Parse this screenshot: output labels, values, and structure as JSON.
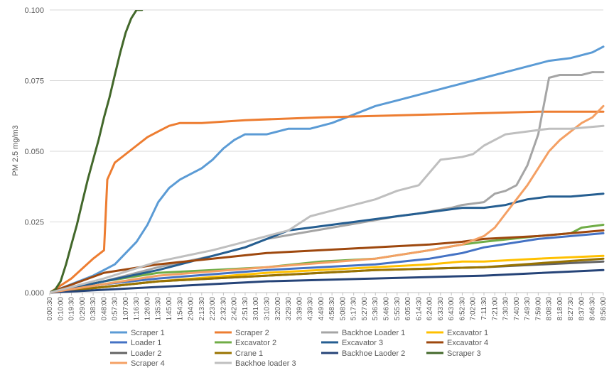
{
  "chart_data": {
    "type": "line",
    "title": "",
    "xlabel": "",
    "ylabel": "PM 2.5 mg/m3",
    "ylim": [
      0,
      0.1
    ],
    "yticks": [
      "0.000",
      "0.025",
      "0.050",
      "0.075",
      "0.100"
    ],
    "grid": "horizontal",
    "legend_position": "bottom",
    "xticks": [
      "0:00:30",
      "0:10:00",
      "0:19:30",
      "0:29:00",
      "0:38:30",
      "0:48:00",
      "0:57:30",
      "1:07:00",
      "1:16:30",
      "1:26:00",
      "1:35:30",
      "1:45:00",
      "1:54:30",
      "2:04:00",
      "2:13:30",
      "2:23:00",
      "2:32:30",
      "2:42:00",
      "2:51:30",
      "3:01:00",
      "3:10:30",
      "3:20:00",
      "3:29:30",
      "3:39:00",
      "4:39:30",
      "4:49:00",
      "4:58:30",
      "5:08:00",
      "5:17:30",
      "5:27:00",
      "5:36:30",
      "5:46:00",
      "5:55:30",
      "6:05:00",
      "6:14:30",
      "6:24:00",
      "6:33:30",
      "6:43:00",
      "6:52:30",
      "7:02:00",
      "7:11:30",
      "7:21:00",
      "7:30:30",
      "7:40:00",
      "7:49:30",
      "7:59:00",
      "8:08:30",
      "8:18:00",
      "8:27:30",
      "8:37:00",
      "8:46:30",
      "8:56:00"
    ],
    "series": [
      {
        "name": "Scraper 1",
        "color": "#5B9BD5",
        "x": [
          0,
          2,
          4,
          6,
          7,
          8,
          9,
          10,
          11,
          12,
          13,
          14,
          15,
          16,
          17,
          18,
          20,
          22,
          24,
          26,
          28,
          30,
          32,
          34,
          36,
          38,
          40,
          42,
          44,
          46,
          48,
          50,
          51
        ],
        "y": [
          0,
          0.003,
          0.006,
          0.01,
          0.014,
          0.018,
          0.024,
          0.032,
          0.037,
          0.04,
          0.042,
          0.044,
          0.047,
          0.051,
          0.054,
          0.056,
          0.056,
          0.058,
          0.058,
          0.06,
          0.063,
          0.066,
          0.068,
          0.07,
          0.072,
          0.074,
          0.076,
          0.078,
          0.08,
          0.082,
          0.083,
          0.085,
          0.087
        ]
      },
      {
        "name": "Scraper 2",
        "color": "#ED7D31",
        "x": [
          0,
          2,
          4,
          5,
          5.3,
          6,
          7,
          8,
          9,
          10,
          11,
          12,
          14,
          18,
          25,
          35,
          45,
          51
        ],
        "y": [
          0,
          0.005,
          0.012,
          0.015,
          0.04,
          0.046,
          0.049,
          0.052,
          0.055,
          0.057,
          0.059,
          0.06,
          0.06,
          0.061,
          0.062,
          0.063,
          0.064,
          0.064
        ]
      },
      {
        "name": "Backhoe Loader 1",
        "color": "#A5A5A5",
        "x": [
          0,
          5,
          10,
          15,
          18,
          20,
          23,
          26,
          29,
          32,
          34,
          37,
          38,
          40,
          41,
          42,
          43,
          44,
          45,
          46,
          47,
          48,
          49,
          50,
          51
        ],
        "y": [
          0,
          0.004,
          0.009,
          0.013,
          0.016,
          0.019,
          0.021,
          0.023,
          0.025,
          0.027,
          0.028,
          0.03,
          0.031,
          0.032,
          0.035,
          0.036,
          0.038,
          0.045,
          0.056,
          0.076,
          0.077,
          0.077,
          0.077,
          0.078,
          0.078
        ]
      },
      {
        "name": "Excavator 1",
        "color": "#FFC000",
        "x": [
          0,
          10,
          20,
          30,
          35,
          38,
          40,
          45,
          51
        ],
        "y": [
          0,
          0.004,
          0.007,
          0.009,
          0.01,
          0.011,
          0.011,
          0.012,
          0.013
        ]
      },
      {
        "name": "Loader 1",
        "color": "#4472C4",
        "x": [
          0,
          5,
          10,
          20,
          30,
          35,
          38,
          40,
          45,
          51
        ],
        "y": [
          0,
          0.003,
          0.005,
          0.008,
          0.01,
          0.012,
          0.014,
          0.016,
          0.019,
          0.021
        ]
      },
      {
        "name": "Excavator 2",
        "color": "#70AD47",
        "x": [
          0,
          5,
          10,
          15,
          20,
          25,
          30,
          35,
          38,
          40,
          45,
          48,
          49,
          51
        ],
        "y": [
          0,
          0.004,
          0.007,
          0.008,
          0.009,
          0.011,
          0.012,
          0.015,
          0.017,
          0.018,
          0.02,
          0.021,
          0.023,
          0.024
        ]
      },
      {
        "name": "Excavator 3",
        "color": "#255E91",
        "x": [
          0,
          5,
          10,
          15,
          18,
          20,
          22,
          24,
          26,
          28,
          30,
          32,
          34,
          36,
          38,
          40,
          42,
          44,
          46,
          48,
          51
        ],
        "y": [
          0,
          0.004,
          0.008,
          0.013,
          0.016,
          0.019,
          0.022,
          0.023,
          0.024,
          0.025,
          0.026,
          0.027,
          0.028,
          0.029,
          0.03,
          0.03,
          0.031,
          0.033,
          0.034,
          0.034,
          0.035
        ]
      },
      {
        "name": "Excavator 4",
        "color": "#9E480E",
        "x": [
          0,
          5,
          10,
          15,
          20,
          25,
          30,
          35,
          38,
          40,
          45,
          51
        ],
        "y": [
          0,
          0.007,
          0.01,
          0.012,
          0.014,
          0.015,
          0.016,
          0.017,
          0.018,
          0.019,
          0.02,
          0.022
        ]
      },
      {
        "name": "Loader 2",
        "color": "#636363",
        "x": [
          0,
          10,
          20,
          30,
          40,
          51
        ],
        "y": [
          0,
          0.004,
          0.006,
          0.008,
          0.009,
          0.011
        ]
      },
      {
        "name": "Crane 1",
        "color": "#997300",
        "x": [
          0,
          10,
          20,
          30,
          40,
          51
        ],
        "y": [
          0,
          0.004,
          0.006,
          0.008,
          0.009,
          0.012
        ]
      },
      {
        "name": "Backhoe Laoder 2",
        "color": "#264478",
        "x": [
          0,
          10,
          20,
          30,
          40,
          51
        ],
        "y": [
          0,
          0.002,
          0.004,
          0.005,
          0.006,
          0.008
        ]
      },
      {
        "name": "Scraper 3",
        "color": "#43682B",
        "x": [
          0,
          0.5,
          1,
          1.5,
          2,
          2.5,
          3,
          3.5,
          4,
          4.5,
          5,
          5.5,
          6,
          6.5,
          7,
          7.5,
          8,
          8.5
        ],
        "y": [
          0,
          0.001,
          0.004,
          0.01,
          0.017,
          0.024,
          0.032,
          0.04,
          0.047,
          0.054,
          0.062,
          0.069,
          0.077,
          0.085,
          0.092,
          0.097,
          0.1,
          0.1
        ]
      },
      {
        "name": "Scraper 4",
        "color": "#F4A064",
        "x": [
          0,
          10,
          20,
          30,
          35,
          38,
          40,
          41,
          42,
          43,
          44,
          45,
          46,
          47,
          48,
          49,
          50,
          51
        ],
        "y": [
          0,
          0.006,
          0.009,
          0.012,
          0.015,
          0.017,
          0.02,
          0.023,
          0.028,
          0.033,
          0.038,
          0.044,
          0.05,
          0.054,
          0.057,
          0.06,
          0.062,
          0.066
        ]
      },
      {
        "name": "Backhoe loader 3",
        "color": "#BFBFBF",
        "x": [
          0,
          5,
          10,
          15,
          18,
          20,
          22,
          24,
          26,
          28,
          30,
          32,
          34,
          36,
          38,
          39,
          40,
          42,
          44,
          46,
          48,
          51
        ],
        "y": [
          0,
          0.005,
          0.011,
          0.015,
          0.018,
          0.02,
          0.022,
          0.027,
          0.029,
          0.031,
          0.033,
          0.036,
          0.038,
          0.047,
          0.048,
          0.049,
          0.052,
          0.056,
          0.057,
          0.058,
          0.058,
          0.059
        ]
      }
    ]
  }
}
